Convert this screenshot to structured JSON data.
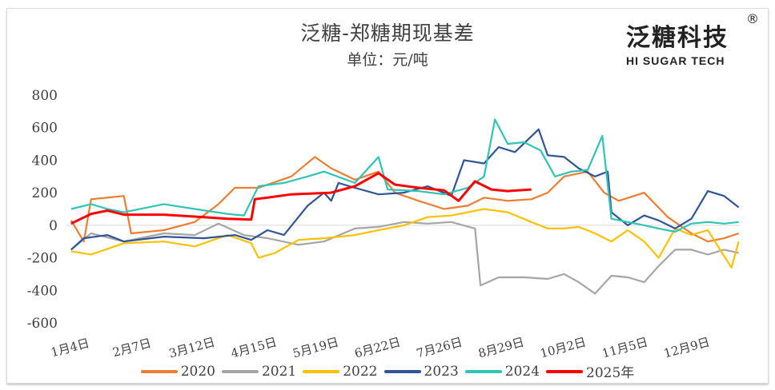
{
  "header": {
    "title": "泛糖-郑糖期现基差",
    "subtitle": "单位：元/吨"
  },
  "logo": {
    "cn": "泛糖科技",
    "en": "HI SUGAR TECH",
    "mark": "®"
  },
  "chart_data": {
    "type": "line",
    "title": "泛糖-郑糖期现基差",
    "ylabel": "单位：元/吨",
    "xlabel": "",
    "ylim": [
      -600,
      800
    ],
    "yticks": [
      800,
      600,
      400,
      200,
      0,
      -200,
      -400,
      -600
    ],
    "xlim": [
      1,
      372
    ],
    "xticks": [
      {
        "day": 4,
        "label": "1月4日"
      },
      {
        "day": 38,
        "label": "2月7日"
      },
      {
        "day": 71,
        "label": "3月12日"
      },
      {
        "day": 105,
        "label": "4月15日"
      },
      {
        "day": 139,
        "label": "5月19日"
      },
      {
        "day": 173,
        "label": "6月22日"
      },
      {
        "day": 207,
        "label": "7月26日"
      },
      {
        "day": 241,
        "label": "8月29日"
      },
      {
        "day": 275,
        "label": "10月2日"
      },
      {
        "day": 309,
        "label": "11月5日"
      },
      {
        "day": 343,
        "label": "12月9日"
      }
    ],
    "legend_position": "bottom",
    "series": [
      {
        "name": "2020",
        "color": "#ED7D31",
        "x": [
          4,
          11,
          15,
          33,
          37,
          55,
          72,
          85,
          94,
          107,
          125,
          138,
          147,
          160,
          173,
          182,
          195,
          209,
          222,
          231,
          244,
          257,
          266,
          275,
          288,
          297,
          305,
          319,
          332,
          345,
          354,
          363,
          371
        ],
        "y": [
          30,
          -100,
          160,
          180,
          -50,
          -30,
          20,
          130,
          230,
          230,
          300,
          420,
          350,
          280,
          330,
          200,
          150,
          100,
          120,
          170,
          150,
          160,
          200,
          300,
          330,
          200,
          150,
          200,
          50,
          -50,
          -100,
          -80,
          -50
        ]
      },
      {
        "name": "2021",
        "color": "#A5A5A5",
        "x": [
          4,
          15,
          33,
          55,
          72,
          85,
          99,
          112,
          129,
          143,
          160,
          173,
          187,
          200,
          213,
          226,
          229,
          239,
          253,
          266,
          275,
          283,
          292,
          301,
          310,
          319,
          327,
          336,
          345,
          354,
          363,
          371
        ],
        "y": [
          -150,
          -50,
          -100,
          -50,
          -60,
          10,
          -60,
          -80,
          -120,
          -100,
          -20,
          -10,
          20,
          10,
          20,
          -20,
          -370,
          -320,
          -320,
          -330,
          -300,
          -350,
          -420,
          -310,
          -320,
          -350,
          -250,
          -150,
          -150,
          -180,
          -150,
          -170
        ]
      },
      {
        "name": "2022",
        "color": "#FFC000",
        "x": [
          4,
          15,
          33,
          55,
          72,
          90,
          103,
          107,
          116,
          129,
          143,
          160,
          173,
          187,
          200,
          213,
          222,
          231,
          244,
          257,
          266,
          275,
          283,
          292,
          301,
          310,
          319,
          327,
          336,
          345,
          354,
          363,
          367,
          371
        ],
        "y": [
          -160,
          -180,
          -110,
          -100,
          -130,
          -60,
          -110,
          -200,
          -170,
          -90,
          -80,
          -60,
          -30,
          0,
          50,
          60,
          80,
          100,
          80,
          20,
          -20,
          -20,
          -10,
          -50,
          -100,
          -30,
          -100,
          -200,
          -20,
          -60,
          -30,
          -190,
          -260,
          -100
        ]
      },
      {
        "name": "2023",
        "color": "#2F5597",
        "x": [
          4,
          11,
          24,
          33,
          55,
          77,
          94,
          103,
          112,
          121,
          134,
          143,
          147,
          151,
          160,
          173,
          187,
          200,
          213,
          220,
          231,
          239,
          248,
          261,
          266,
          275,
          283,
          292,
          299,
          301,
          310,
          319,
          327,
          336,
          345,
          354,
          363,
          371
        ],
        "y": [
          -150,
          -80,
          -60,
          -100,
          -70,
          -80,
          -60,
          -90,
          -30,
          -60,
          120,
          200,
          150,
          260,
          230,
          190,
          200,
          240,
          180,
          400,
          380,
          480,
          450,
          590,
          430,
          420,
          350,
          300,
          330,
          80,
          0,
          60,
          30,
          -20,
          40,
          210,
          180,
          110
        ]
      },
      {
        "name": "2024",
        "color": "#2EC4B6",
        "x": [
          4,
          15,
          24,
          33,
          55,
          72,
          90,
          99,
          107,
          121,
          134,
          143,
          160,
          173,
          178,
          195,
          209,
          222,
          231,
          237,
          244,
          253,
          262,
          270,
          279,
          288,
          296,
          301,
          310,
          319,
          327,
          336,
          345,
          354,
          363,
          371
        ],
        "y": [
          100,
          130,
          100,
          80,
          130,
          100,
          70,
          60,
          240,
          260,
          300,
          330,
          260,
          420,
          220,
          210,
          190,
          230,
          300,
          650,
          500,
          510,
          460,
          300,
          330,
          340,
          550,
          40,
          20,
          0,
          -20,
          -40,
          10,
          20,
          10,
          20
        ]
      },
      {
        "name": "2025年",
        "color": "#FF0000",
        "x": [
          4,
          15,
          24,
          33,
          55,
          77,
          90,
          103,
          105,
          112,
          125,
          147,
          160,
          173,
          182,
          195,
          209,
          217,
          226,
          235,
          244,
          257
        ],
        "y": [
          10,
          70,
          90,
          65,
          65,
          50,
          40,
          35,
          160,
          170,
          190,
          200,
          240,
          320,
          250,
          230,
          215,
          150,
          270,
          220,
          210,
          220
        ]
      }
    ]
  }
}
